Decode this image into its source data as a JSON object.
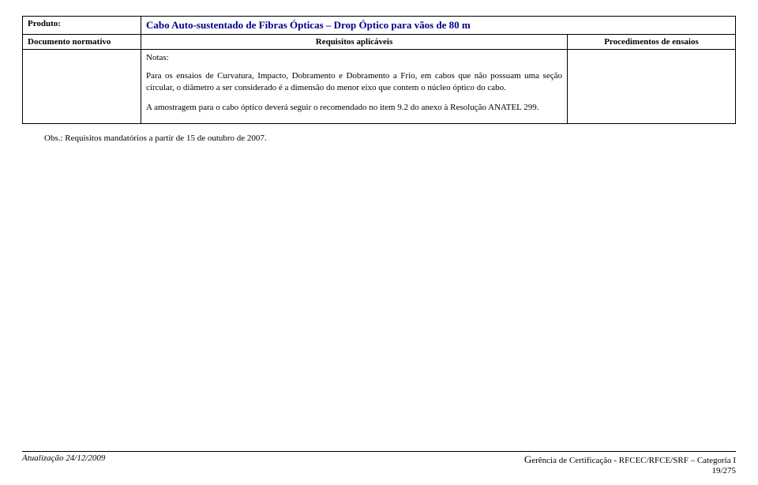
{
  "product": {
    "label": "Produto:",
    "title": "Cabo Auto-sustentado de Fibras Ópticas – Drop Óptico para vãos de 80 m"
  },
  "headers": {
    "doc": "Documento normativo",
    "req": "Requisitos aplicáveis",
    "proc": "Procedimentos de ensaios"
  },
  "body": {
    "notas_label": "Notas:",
    "para1": "Para os ensaios de Curvatura, Impacto, Dobramento e Dobramento a Frio, em cabos que não possuam uma seção circular, o diâmetro a ser considerado é a dimensão do menor eixo que contem o núcleo óptico do cabo.",
    "para2": "A amostragem para o cabo óptico deverá seguir o recomendado no item 9.2 do anexo à Resolução ANATEL 299."
  },
  "obs": "Obs.: Requisitos mandatórios a partir de 15 de outubro de 2007.",
  "footer": {
    "left": "Atualização 24/12/2009",
    "right_prefix_big": "G",
    "right_rest": "erência de Certificação - RFCEC/RFCE/SRF – Categoria I",
    "page": "19/275"
  }
}
